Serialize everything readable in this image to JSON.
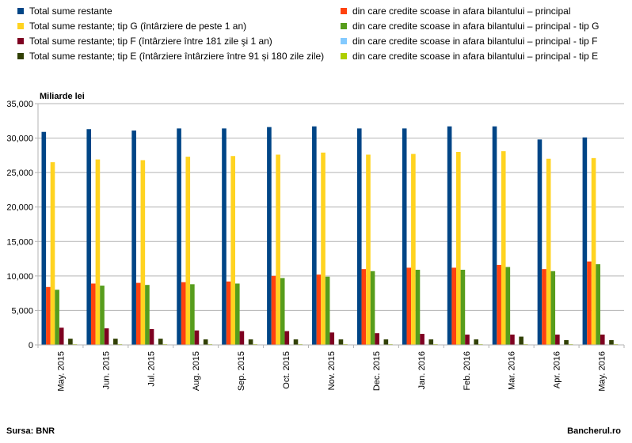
{
  "chart_data": {
    "type": "bar",
    "title": "",
    "xlabel": "",
    "ylabel": "Miliarde lei",
    "ylim": [
      0,
      35000
    ],
    "yticks": [
      "0",
      "5,000",
      "10,000",
      "15,000",
      "20,000",
      "25,000",
      "30,000",
      "35,000"
    ],
    "ytick_values": [
      0,
      5000,
      10000,
      15000,
      20000,
      25000,
      30000,
      35000
    ],
    "grid": true,
    "legend_position": "top",
    "categories": [
      "May. 2015",
      "Jun. 2015",
      "Jul. 2015",
      "Aug. 2015",
      "Sep. 2015",
      "Oct. 2015",
      "Nov. 2015",
      "Dec. 2015",
      "Jan. 2016",
      "Feb. 2016",
      "Mar. 2016",
      "Apr. 2016",
      "May. 2016"
    ],
    "series": [
      {
        "name": "Total sume restante",
        "color": "#004586",
        "values": [
          30900,
          31300,
          31100,
          31400,
          31400,
          31600,
          31700,
          31400,
          31400,
          31700,
          31700,
          29800,
          30100
        ]
      },
      {
        "name": "din care credite scoase in afara bilantului – principal",
        "color": "#ff420e",
        "values": [
          8400,
          8900,
          9000,
          9100,
          9200,
          10000,
          10200,
          11000,
          11200,
          11200,
          11600,
          11000,
          12100
        ]
      },
      {
        "name": "Total sume restante; tip G (întârziere de peste 1 an)",
        "color": "#ffd320",
        "values": [
          26500,
          26900,
          26800,
          27300,
          27400,
          27600,
          27900,
          27600,
          27700,
          28000,
          28100,
          27000,
          27100
        ]
      },
      {
        "name": "din care credite scoase in afara bilantului – principal - tip G",
        "color": "#579d1c",
        "values": [
          8000,
          8600,
          8700,
          8800,
          8900,
          9700,
          9900,
          10700,
          10900,
          10900,
          11300,
          10700,
          11700
        ]
      },
      {
        "name": "Total sume restante; tip F (întârziere între 181 zile şi 1 an)",
        "color": "#7e0021",
        "values": [
          2500,
          2400,
          2300,
          2100,
          2000,
          2000,
          1800,
          1700,
          1600,
          1500,
          1500,
          1500,
          1500
        ]
      },
      {
        "name": "din care credite scoase in afara bilantului – principal - tip F",
        "color": "#83caff",
        "values": [
          50,
          50,
          50,
          50,
          50,
          50,
          50,
          50,
          50,
          50,
          50,
          50,
          50
        ]
      },
      {
        "name": "Total sume restante; tip E (întârziere întârziere între 91 și 180 zile zile)",
        "color": "#314004",
        "values": [
          900,
          900,
          900,
          800,
          800,
          800,
          800,
          800,
          800,
          800,
          1200,
          700,
          700
        ]
      },
      {
        "name": "din care credite scoase in afara bilantului – principal - tip E",
        "color": "#aecf00",
        "values": [
          100,
          100,
          100,
          100,
          100,
          100,
          100,
          100,
          100,
          100,
          100,
          100,
          100
        ]
      }
    ]
  },
  "footer": {
    "source": "Sursa: BNR",
    "brand": "Bancherul.ro"
  }
}
